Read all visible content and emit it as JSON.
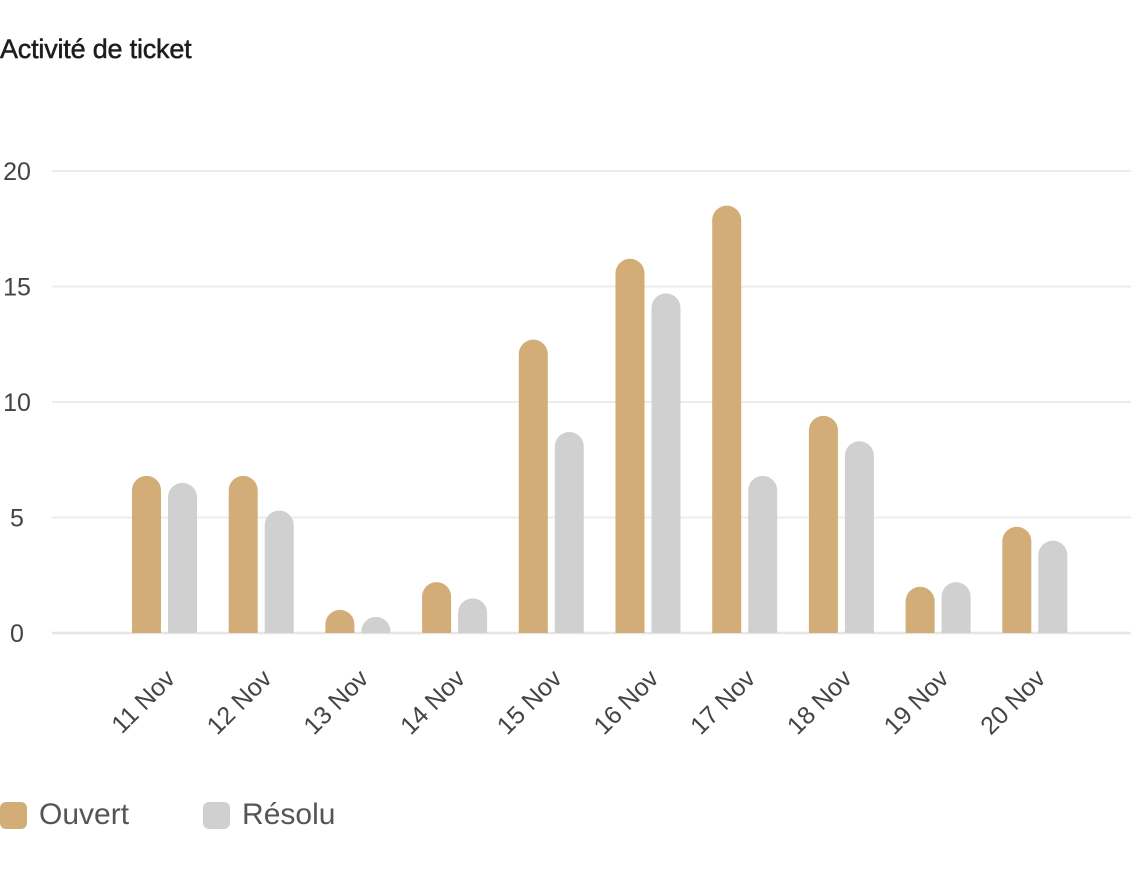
{
  "title": "Activité de ticket",
  "chart_data": {
    "type": "bar",
    "title": "Activité de ticket",
    "categories": [
      "11 Nov",
      "12 Nov",
      "13 Nov",
      "14 Nov",
      "15 Nov",
      "16 Nov",
      "17 Nov",
      "18 Nov",
      "19 Nov",
      "20 Nov"
    ],
    "series": [
      {
        "name": "Ouvert",
        "color": "#d2ad77",
        "values": [
          6.8,
          6.8,
          1.0,
          2.2,
          12.7,
          16.2,
          18.5,
          9.4,
          2.0,
          4.6
        ]
      },
      {
        "name": "Résolu",
        "color": "#d0d0d0",
        "values": [
          6.5,
          5.3,
          0.7,
          1.5,
          8.7,
          14.7,
          6.8,
          8.3,
          2.2,
          4.0
        ]
      }
    ],
    "yticks": [
      "0",
      "5",
      "10",
      "15",
      "20"
    ],
    "ylim": [
      0,
      20
    ],
    "grid": true,
    "legend_position": "bottom-left"
  }
}
